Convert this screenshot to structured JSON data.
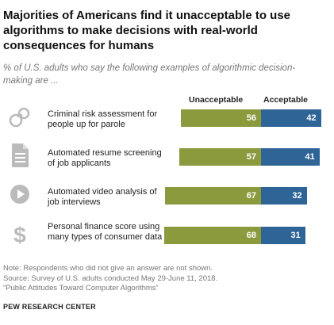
{
  "header": {
    "title": "Majorities of Americans find it unacceptable to use algorithms to make decisions with real-world consequences for humans",
    "subtitle": "% of U.S. adults who say the following examples of algorithmic decision-making are ..."
  },
  "chart_data": {
    "type": "bar",
    "orientation": "horizontal",
    "stacked": "diverging",
    "categories": [
      "Criminal risk assessment for people up for parole",
      "Automated resume screening of job applicants",
      "Automated video analysis of job interviews",
      "Personal finance score using many types of consumer data"
    ],
    "series": [
      {
        "name": "Unacceptable",
        "values": [
          56,
          57,
          67,
          68
        ],
        "color": "#8a9a3c"
      },
      {
        "name": "Acceptable",
        "values": [
          42,
          41,
          32,
          31
        ],
        "color": "#2f6497"
      }
    ],
    "icons": [
      "handcuffs-icon",
      "document-icon",
      "video-play-icon",
      "dollar-sign-icon"
    ],
    "legend_placement": "top",
    "grid": false
  },
  "footer": {
    "note": "Note: Respondents who did not give an answer are not shown.",
    "source": "Source: Survey of U.S. adults conducted May 29-June 11, 2018.",
    "report": "“Public Attitudes Toward Computer Algorithms”",
    "brand": "PEW RESEARCH CENTER"
  }
}
